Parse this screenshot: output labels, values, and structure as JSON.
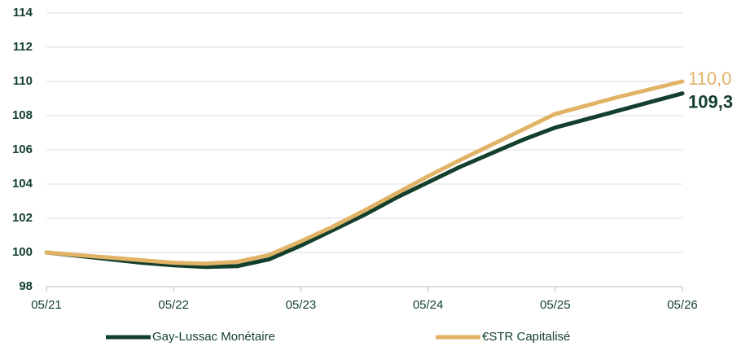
{
  "chart_data": {
    "type": "line",
    "categories": [
      "05/21",
      null,
      null,
      null,
      "05/22",
      null,
      null,
      null,
      "05/23",
      null,
      null,
      null,
      "05/24",
      null,
      null,
      null,
      "05/25",
      null,
      null,
      null,
      "05/26"
    ],
    "series": [
      {
        "name": "Gay-Lussac Monétaire",
        "color": "#133f2d",
        "values": [
          100,
          99.8,
          99.6,
          99.4,
          99.25,
          99.15,
          99.2,
          99.6,
          100.4,
          101.3,
          102.2,
          103.2,
          104.1,
          105.0,
          105.8,
          106.6,
          107.3,
          107.8,
          108.3,
          108.8,
          109.3
        ],
        "value_labels": {
          "20": "109,3"
        }
      },
      {
        "name": "€STR Capitalisé",
        "color": "#e1b366",
        "values": [
          100,
          99.85,
          99.7,
          99.55,
          99.4,
          99.35,
          99.45,
          99.85,
          100.65,
          101.5,
          102.45,
          103.45,
          104.45,
          105.4,
          106.3,
          107.2,
          108.1,
          108.6,
          109.1,
          109.55,
          110.0
        ],
        "value_labels": {
          "20": "110,0"
        }
      }
    ],
    "ylim": [
      98,
      114
    ],
    "yticks": [
      98,
      100,
      102,
      104,
      106,
      108,
      110,
      112,
      114
    ],
    "grid": true
  }
}
